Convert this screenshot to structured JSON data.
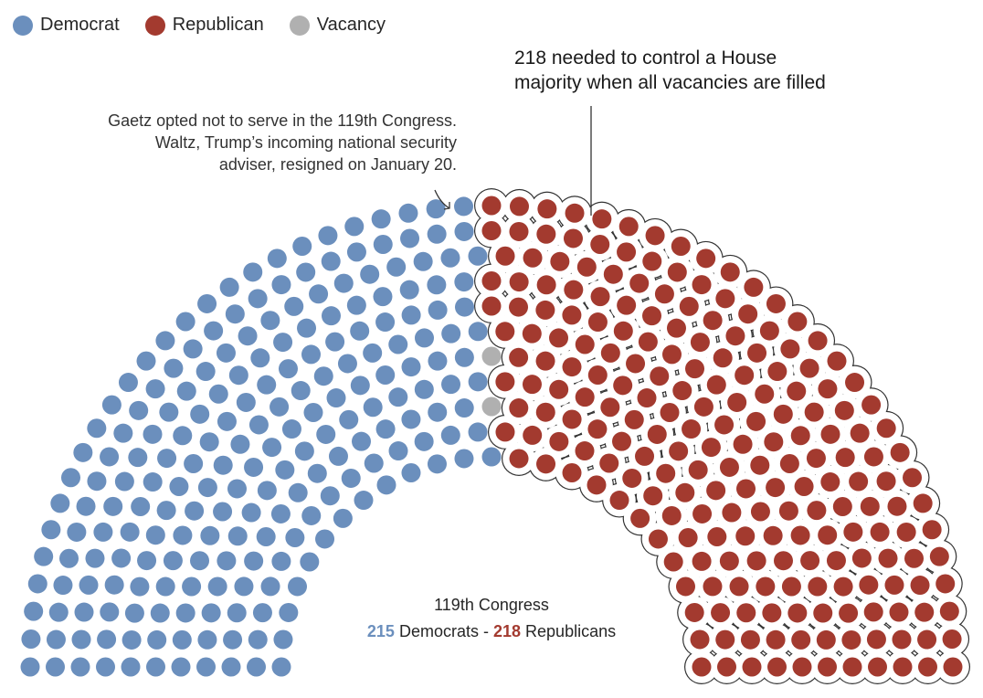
{
  "legend": [
    {
      "label": "Democrat",
      "color": "#6b8fbd"
    },
    {
      "label": "Republican",
      "color": "#a33a2f"
    },
    {
      "label": "Vacancy",
      "color": "#b0b0b0"
    }
  ],
  "annotations": {
    "majority_line1": "218 needed to control a House",
    "majority_line2": "majority when all vacancies are filled",
    "vacancy_line1": "Gaetz opted not to serve in the 119th Congress.",
    "vacancy_line2": "Waltz, Trump’s incoming national security",
    "vacancy_line3": "adviser, resigned on January 20."
  },
  "summary": {
    "title": "119th Congress",
    "dem_count": "215",
    "dem_label": " Democrats - ",
    "rep_count": "218",
    "rep_label": " Republicans"
  },
  "chart_data": {
    "type": "parliament",
    "title": "119th Congress",
    "categories": [
      "Democrat",
      "Vacancy",
      "Republican"
    ],
    "values": [
      215,
      2,
      218
    ],
    "colors": [
      "#6b8fbd",
      "#b0b0b0",
      "#a33a2f"
    ],
    "total_seats": 435,
    "majority_threshold": 218,
    "legend_position": "top-left",
    "annotations": [
      "218 needed to control a House majority when all vacancies are filled",
      "Gaetz opted not to serve in the 119th Congress. Waltz, Trump’s incoming national security adviser, resigned on January 20."
    ]
  }
}
